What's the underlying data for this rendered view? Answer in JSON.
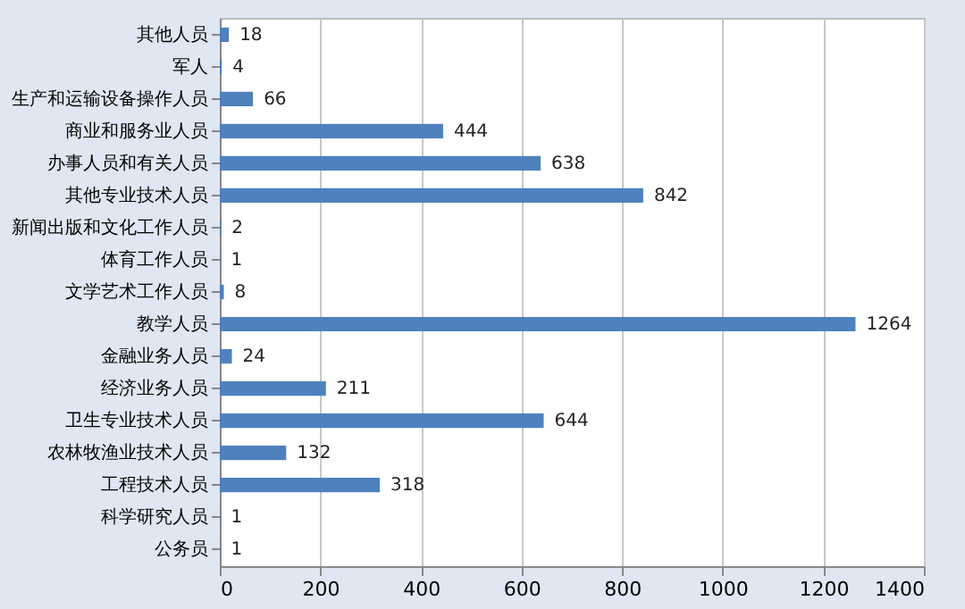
{
  "chart_data": {
    "type": "bar",
    "orientation": "horizontal",
    "categories": [
      "其他人员",
      "军人",
      "生产和运输设备操作人员",
      "商业和服务业人员",
      "办事人员和有关人员",
      "其他专业技术人员",
      "新闻出版和文化工作人员",
      "体育工作人员",
      "文学艺术工作人员",
      "教学人员",
      "金融业务人员",
      "经济业务人员",
      "卫生专业技术人员",
      "农林牧渔业技术人员",
      "工程技术人员",
      "科学研究人员",
      "公务员"
    ],
    "values": [
      18,
      4,
      66,
      444,
      638,
      842,
      2,
      1,
      8,
      1264,
      24,
      211,
      644,
      132,
      318,
      1,
      1
    ],
    "color": "#4f81bd",
    "data_labels": true,
    "xlim": [
      0,
      1400
    ],
    "xticks": [
      0,
      200,
      400,
      600,
      800,
      1000,
      1200,
      1400
    ],
    "grid": "x"
  }
}
